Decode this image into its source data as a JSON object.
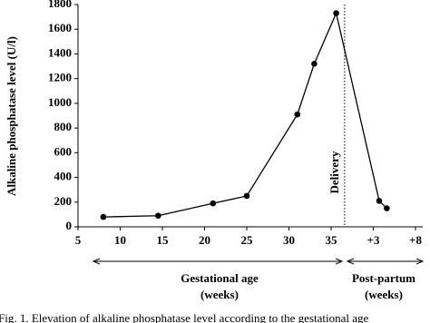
{
  "chart_data": {
    "type": "line",
    "y_label": "Alkaline phosphatase level (U/l)",
    "x": [
      8,
      14.5,
      21,
      25,
      31,
      33,
      35.6,
      40.7,
      41.6
    ],
    "series": [
      {
        "color": "#000000",
        "values": [
          80,
          90,
          190,
          250,
          910,
          1320,
          1730,
          210,
          150
        ]
      }
    ],
    "xlim": [
      5,
      45
    ],
    "xticks": [
      5,
      10,
      15,
      20,
      25,
      30,
      35,
      {
        "value": 40,
        "label": "+3"
      },
      {
        "value": 45,
        "label": "+8"
      }
    ],
    "ylim": [
      0,
      1800
    ],
    "yticks": [
      0,
      200,
      400,
      600,
      800,
      1000,
      1200,
      1400,
      1600,
      1800
    ],
    "vline": {
      "x": 36.6,
      "label": "Delivery"
    },
    "annotations": [
      "Gestational age",
      "(weeks)",
      "Post-partum",
      "(weeks)"
    ],
    "caption": "Fig. 1. Elevation of alkaline phosphatase level according to the gestational age"
  }
}
